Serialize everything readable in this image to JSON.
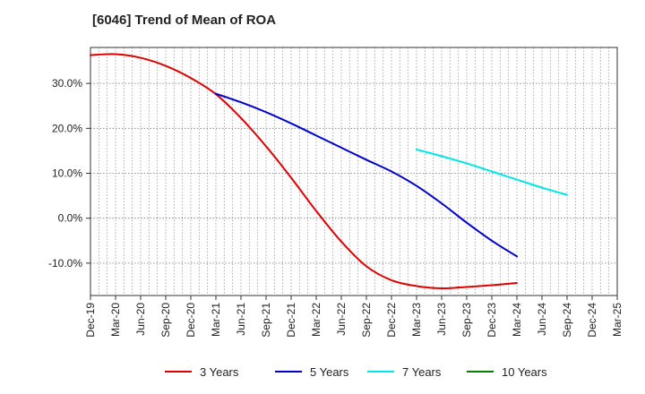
{
  "chart_data": {
    "type": "line",
    "title": "[6046]  Trend of Mean of ROA",
    "xlabel": "",
    "ylabel": "",
    "ylim": [
      -17.2,
      38.0
    ],
    "y_ticks": [
      {
        "value": 30,
        "label": "30.0%"
      },
      {
        "value": 20,
        "label": "20.0%"
      },
      {
        "value": 10,
        "label": "10.0%"
      },
      {
        "value": 0,
        "label": "0.0%"
      },
      {
        "value": -10,
        "label": "-10.0%"
      }
    ],
    "x_ticks": [
      "Dec-19",
      "Mar-20",
      "Jun-20",
      "Sep-20",
      "Dec-20",
      "Mar-21",
      "Jun-21",
      "Sep-21",
      "Dec-21",
      "Mar-22",
      "Jun-22",
      "Sep-22",
      "Dec-22",
      "Mar-23",
      "Jun-23",
      "Sep-23",
      "Dec-23",
      "Mar-24",
      "Jun-24",
      "Sep-24",
      "Dec-24",
      "Mar-25"
    ],
    "x_minor_per_tick": 3,
    "grid": true,
    "legend_position": "bottom",
    "series": [
      {
        "name": "3 Years",
        "color": "#dd0000",
        "points": [
          [
            0,
            36.3
          ],
          [
            1,
            36.5
          ],
          [
            2,
            35.7
          ],
          [
            3,
            33.9
          ],
          [
            4,
            31.2
          ],
          [
            5,
            27.6
          ],
          [
            6,
            22.3
          ],
          [
            7,
            16.0
          ],
          [
            8,
            9.0
          ],
          [
            9,
            1.6
          ],
          [
            10,
            -5.2
          ],
          [
            11,
            -10.7
          ],
          [
            12,
            -13.8
          ],
          [
            13,
            -15.1
          ],
          [
            14,
            -15.6
          ],
          [
            15,
            -15.3
          ],
          [
            16,
            -14.9
          ],
          [
            17,
            -14.4
          ]
        ]
      },
      {
        "name": "5 Years",
        "color": "#0000cc",
        "points": [
          [
            5,
            27.7
          ],
          [
            6,
            25.8
          ],
          [
            7,
            23.6
          ],
          [
            8,
            21.1
          ],
          [
            9,
            18.4
          ],
          [
            10,
            15.7
          ],
          [
            11,
            13.0
          ],
          [
            12,
            10.4
          ],
          [
            13,
            7.2
          ],
          [
            14,
            3.3
          ],
          [
            15,
            -1.0
          ],
          [
            16,
            -5.0
          ],
          [
            17,
            -8.5
          ]
        ]
      },
      {
        "name": "7 Years",
        "color": "#00e5e5",
        "points": [
          [
            13,
            15.3
          ],
          [
            14,
            13.8
          ],
          [
            15,
            12.2
          ],
          [
            16,
            10.4
          ],
          [
            17,
            8.6
          ],
          [
            18,
            6.8
          ],
          [
            19,
            5.2
          ]
        ]
      },
      {
        "name": "10 Years",
        "color": "#008000",
        "points": []
      }
    ]
  }
}
